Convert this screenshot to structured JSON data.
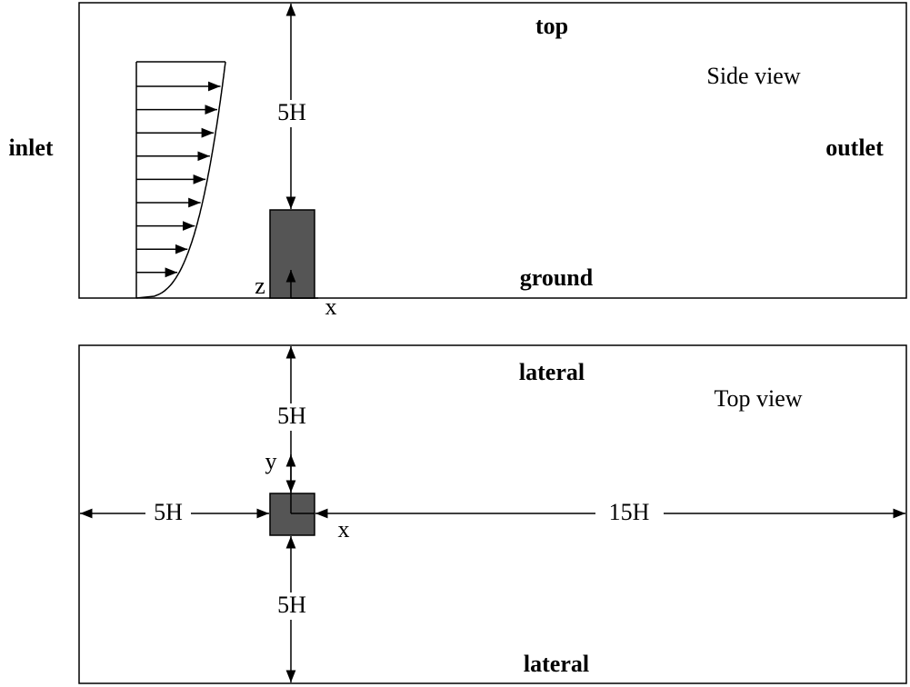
{
  "side_view": {
    "title": "Side view",
    "top": "top",
    "inlet": "inlet",
    "outlet": "outlet",
    "ground": "ground",
    "height_gap": "5H",
    "axis_z": "z",
    "axis_x": "x"
  },
  "top_view": {
    "title": "Top view",
    "lateral_top": "lateral",
    "lateral_bottom": "lateral",
    "upstream": "5H",
    "downstream": "15H",
    "upper_gap": "5H",
    "lower_gap": "5H",
    "axis_y": "y",
    "axis_x": "x"
  }
}
